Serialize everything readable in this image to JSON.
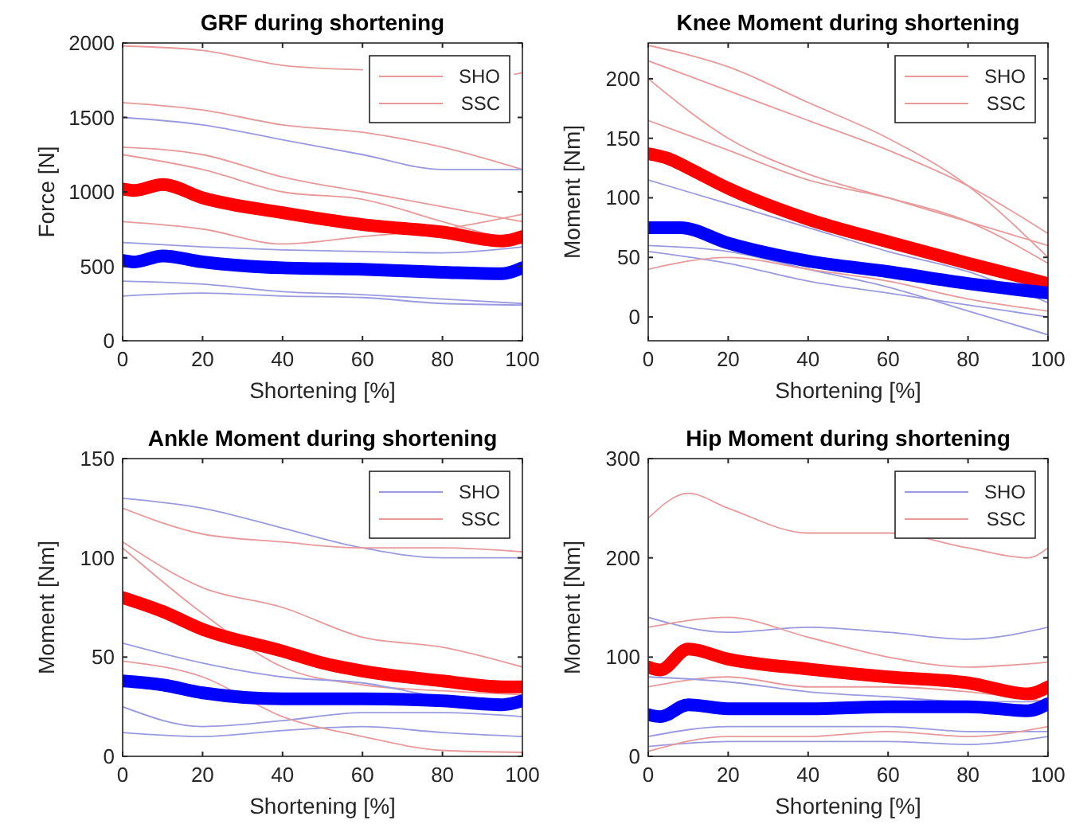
{
  "chart_data": [
    {
      "type": "line",
      "title": "GRF during shortening",
      "xlabel": "Shortening [%]",
      "ylabel": "Force [N]",
      "xlim": [
        0,
        100
      ],
      "xticks": [
        0,
        20,
        40,
        60,
        80,
        100
      ],
      "ylim": [
        0,
        2000
      ],
      "yticks": [
        0,
        500,
        1000,
        1500,
        2000
      ],
      "legend": "top right",
      "grid": false,
      "series": [
        {
          "name": "SHO",
          "color": "#e89a9a",
          "x": [
            0,
            20,
            40,
            60,
            80,
            98,
            100
          ],
          "values": [
            1980,
            1950,
            1850,
            1820,
            null,
            1790,
            1800
          ]
        },
        {
          "name": "SSC",
          "color": "#e89a9a",
          "x": [
            0,
            20,
            40,
            60,
            80,
            100
          ],
          "values": [
            1600,
            1550,
            1450,
            1400,
            1300,
            1150
          ]
        },
        {
          "color": "#e89a9a",
          "x": [
            0,
            20,
            40,
            60,
            80,
            100
          ],
          "values": [
            1300,
            1250,
            1100,
            1000,
            900,
            800
          ]
        },
        {
          "color": "#e89a9a",
          "x": [
            0,
            20,
            40,
            60,
            80,
            100
          ],
          "values": [
            1250,
            1150,
            1000,
            950,
            800,
            650
          ]
        },
        {
          "color": "#9a9ae0",
          "x": [
            0,
            20,
            40,
            60,
            80,
            100
          ],
          "values": [
            1500,
            1450,
            1350,
            1250,
            1150,
            1150
          ]
        },
        {
          "color": "#9a9ae0",
          "x": [
            0,
            20,
            40,
            60,
            80,
            100
          ],
          "values": [
            660,
            630,
            610,
            600,
            590,
            630
          ]
        },
        {
          "color": "#9a9ae0",
          "x": [
            0,
            20,
            40,
            60,
            80,
            100
          ],
          "values": [
            400,
            380,
            330,
            310,
            280,
            250
          ]
        },
        {
          "color": "#9a9ae0",
          "x": [
            0,
            20,
            40,
            60,
            80,
            100
          ],
          "values": [
            300,
            320,
            300,
            290,
            250,
            240
          ]
        },
        {
          "color": "#e89a9a",
          "x": [
            0,
            20,
            40,
            60,
            80,
            100
          ],
          "values": [
            800,
            750,
            650,
            700,
            750,
            850
          ]
        },
        {
          "color": "#ff0000",
          "x": [
            0,
            3,
            10,
            20,
            40,
            60,
            80,
            95,
            100
          ],
          "values": [
            1020,
            1010,
            1050,
            960,
            860,
            780,
            730,
            670,
            700
          ]
        },
        {
          "color": "#0000ff",
          "x": [
            0,
            3,
            10,
            20,
            40,
            60,
            80,
            95,
            100
          ],
          "values": [
            540,
            530,
            570,
            530,
            490,
            480,
            460,
            450,
            490
          ]
        }
      ]
    },
    {
      "type": "line",
      "title": "Knee Moment during shortening",
      "xlabel": "Shortening [%]",
      "ylabel": "Moment [Nm]",
      "xlim": [
        0,
        100
      ],
      "xticks": [
        0,
        20,
        40,
        60,
        80,
        100
      ],
      "ylim": [
        -20,
        230
      ],
      "yticks": [
        0,
        50,
        100,
        150,
        200
      ],
      "legend": "top right",
      "grid": false,
      "series": [
        {
          "name": "SHO",
          "color": "#e89a9a",
          "x": [
            0,
            20,
            40,
            60,
            80,
            100
          ],
          "values": [
            215,
            190,
            165,
            140,
            110,
            70
          ]
        },
        {
          "name": "SSC",
          "color": "#e89a9a",
          "x": [
            0,
            20,
            40,
            60,
            80,
            100
          ],
          "values": [
            228,
            210,
            180,
            150,
            110,
            50
          ]
        },
        {
          "color": "#e89a9a",
          "x": [
            0,
            20,
            40,
            60,
            80,
            100
          ],
          "values": [
            165,
            140,
            115,
            100,
            80,
            45
          ]
        },
        {
          "color": "#e89a9a",
          "x": [
            0,
            20,
            40,
            60,
            80,
            100
          ],
          "values": [
            200,
            150,
            120,
            100,
            80,
            60
          ]
        },
        {
          "color": "#9a9ae0",
          "x": [
            0,
            20,
            40,
            60,
            80,
            100
          ],
          "values": [
            115,
            95,
            75,
            55,
            38,
            12
          ]
        },
        {
          "color": "#9a9ae0",
          "x": [
            0,
            20,
            40,
            60,
            80,
            100
          ],
          "values": [
            60,
            55,
            40,
            25,
            5,
            -15
          ]
        },
        {
          "color": "#9a9ae0",
          "x": [
            0,
            20,
            40,
            60,
            80,
            100
          ],
          "values": [
            55,
            45,
            30,
            20,
            10,
            0
          ]
        },
        {
          "color": "#e89a9a",
          "x": [
            0,
            20,
            40,
            60,
            80,
            100
          ],
          "values": [
            40,
            50,
            40,
            30,
            15,
            5
          ]
        },
        {
          "color": "#ff0000",
          "x": [
            0,
            5,
            10,
            20,
            40,
            60,
            80,
            100
          ],
          "values": [
            137,
            133,
            125,
            108,
            82,
            63,
            45,
            28
          ]
        },
        {
          "color": "#0000ff",
          "x": [
            0,
            8,
            20,
            40,
            60,
            80,
            100
          ],
          "values": [
            75,
            75,
            62,
            47,
            38,
            28,
            20
          ]
        }
      ]
    },
    {
      "type": "line",
      "title": "Ankle Moment during shortening",
      "xlabel": "Shortening [%]",
      "ylabel": "Moment [Nm]",
      "xlim": [
        0,
        100
      ],
      "xticks": [
        0,
        20,
        40,
        60,
        80,
        100
      ],
      "ylim": [
        0,
        150
      ],
      "yticks": [
        0,
        50,
        100,
        150
      ],
      "legend": "top right",
      "grid": false,
      "series": [
        {
          "name": "SHO",
          "color": "#9a9ae0",
          "x": [
            0,
            20,
            40,
            60,
            80,
            100
          ],
          "values": [
            130,
            125,
            115,
            105,
            100,
            100
          ]
        },
        {
          "name": "SSC",
          "color": "#e89a9a",
          "x": [
            0,
            20,
            40,
            60,
            80,
            100
          ],
          "values": [
            125,
            112,
            108,
            105,
            105,
            103
          ]
        },
        {
          "color": "#e89a9a",
          "x": [
            0,
            20,
            40,
            60,
            80,
            100
          ],
          "values": [
            108,
            85,
            75,
            60,
            55,
            45
          ]
        },
        {
          "color": "#e89a9a",
          "x": [
            0,
            20,
            40,
            60,
            80,
            100
          ],
          "values": [
            105,
            72,
            45,
            36,
            33,
            31
          ]
        },
        {
          "color": "#9a9ae0",
          "x": [
            0,
            20,
            40,
            60,
            80,
            100
          ],
          "values": [
            57,
            47,
            40,
            37,
            30,
            28
          ]
        },
        {
          "color": "#9a9ae0",
          "x": [
            0,
            20,
            40,
            60,
            80,
            100
          ],
          "values": [
            25,
            15,
            18,
            22,
            22,
            20
          ]
        },
        {
          "color": "#9a9ae0",
          "x": [
            0,
            20,
            40,
            60,
            80,
            100
          ],
          "values": [
            12,
            10,
            13,
            15,
            12,
            10
          ]
        },
        {
          "color": "#e89a9a",
          "x": [
            0,
            20,
            40,
            60,
            80,
            100
          ],
          "values": [
            48,
            40,
            20,
            10,
            3,
            2
          ]
        },
        {
          "color": "#ff0000",
          "x": [
            0,
            10,
            20,
            40,
            50,
            60,
            80,
            95,
            100
          ],
          "values": [
            80,
            73,
            64,
            53,
            47,
            43,
            38,
            35,
            35
          ]
        },
        {
          "color": "#0000ff",
          "x": [
            0,
            10,
            20,
            40,
            60,
            80,
            95,
            100
          ],
          "values": [
            38,
            36,
            32,
            29,
            29,
            28,
            26,
            28
          ]
        }
      ]
    },
    {
      "type": "line",
      "title": "Hip Moment during shortening",
      "xlabel": "Shortening [%]",
      "ylabel": "Moment [Nm]",
      "xlim": [
        0,
        100
      ],
      "xticks": [
        0,
        20,
        40,
        60,
        80,
        100
      ],
      "ylim": [
        0,
        300
      ],
      "yticks": [
        0,
        100,
        200,
        300
      ],
      "legend": "top right",
      "grid": false,
      "series": [
        {
          "name": "SHO",
          "color": "#9a9ae0",
          "x": [
            0,
            20,
            40,
            60,
            80,
            100
          ],
          "values": [
            140,
            125,
            130,
            125,
            118,
            130
          ]
        },
        {
          "name": "SSC",
          "color": "#e89a9a",
          "x": [
            0,
            10,
            20,
            40,
            60,
            80,
            95,
            100
          ],
          "values": [
            240,
            265,
            250,
            225,
            225,
            210,
            200,
            210
          ]
        },
        {
          "color": "#e89a9a",
          "x": [
            0,
            20,
            40,
            60,
            80,
            100
          ],
          "values": [
            130,
            140,
            120,
            100,
            90,
            95
          ]
        },
        {
          "color": "#e89a9a",
          "x": [
            0,
            20,
            40,
            60,
            80,
            100
          ],
          "values": [
            70,
            80,
            70,
            70,
            65,
            55
          ]
        },
        {
          "color": "#9a9ae0",
          "x": [
            0,
            20,
            40,
            60,
            80,
            100
          ],
          "values": [
            80,
            75,
            65,
            60,
            55,
            55
          ]
        },
        {
          "color": "#9a9ae0",
          "x": [
            0,
            20,
            40,
            60,
            80,
            100
          ],
          "values": [
            20,
            30,
            30,
            30,
            25,
            25
          ]
        },
        {
          "color": "#9a9ae0",
          "x": [
            0,
            20,
            40,
            60,
            80,
            100
          ],
          "values": [
            10,
            15,
            15,
            15,
            12,
            20
          ]
        },
        {
          "color": "#e89a9a",
          "x": [
            0,
            20,
            40,
            60,
            80,
            100
          ],
          "values": [
            5,
            20,
            20,
            25,
            20,
            30
          ]
        },
        {
          "color": "#ff0000",
          "x": [
            0,
            3,
            10,
            20,
            40,
            60,
            80,
            95,
            100
          ],
          "values": [
            90,
            87,
            108,
            98,
            88,
            80,
            74,
            63,
            70
          ]
        },
        {
          "color": "#0000ff",
          "x": [
            0,
            3,
            10,
            20,
            40,
            60,
            80,
            95,
            100
          ],
          "values": [
            42,
            40,
            52,
            48,
            48,
            50,
            50,
            46,
            53
          ]
        }
      ]
    }
  ]
}
